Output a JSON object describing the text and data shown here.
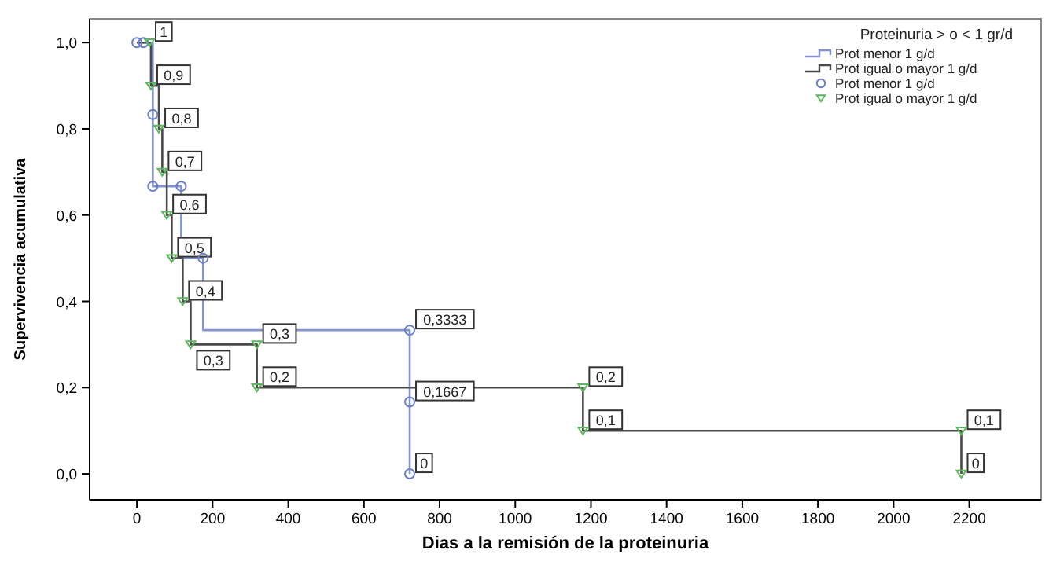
{
  "chart_data": {
    "type": "step",
    "xlabel": "Dias a la remisión de la proteinuria",
    "ylabel": "Supervivencia acumulativa",
    "legend_title": "Proteinuria > o < 1 gr/d",
    "legend": "top right",
    "grid": false,
    "xlim": [
      -125,
      2390
    ],
    "xticks": [
      0,
      200,
      400,
      600,
      800,
      1000,
      1200,
      1400,
      1600,
      1800,
      2000,
      2200
    ],
    "ylim": [
      -0.06,
      1.055
    ],
    "yticks": [
      {
        "value": 0,
        "label": "0,0"
      },
      {
        "value": 0.2,
        "label": "0,2"
      },
      {
        "value": 0.4,
        "label": "0,4"
      },
      {
        "value": 0.6,
        "label": "0,6"
      },
      {
        "value": 0.8,
        "label": "0,8"
      },
      {
        "value": 1,
        "label": "1,0"
      }
    ],
    "series": [
      {
        "name": "Prot menor 1 g/d",
        "color": "#8293d2",
        "x": [
          0,
          17,
          42,
          42,
          117,
          117,
          175,
          175,
          721,
          721,
          721
        ],
        "values": [
          1,
          1,
          0.8333,
          0.6667,
          0.6667,
          0.5,
          0.5,
          0.3333,
          0.3333,
          0.1667,
          0
        ]
      },
      {
        "name": "Prot igual o mayor 1 g/d",
        "color": "#4a4a4a",
        "x": [
          0,
          37,
          37,
          58,
          58,
          67,
          67,
          79,
          79,
          92,
          92,
          121,
          121,
          142,
          142,
          317,
          317,
          1179,
          1179,
          2179,
          2179
        ],
        "values": [
          1,
          1,
          0.9,
          0.9,
          0.8,
          0.8,
          0.7,
          0.7,
          0.6,
          0.6,
          0.5,
          0.5,
          0.4,
          0.4,
          0.3,
          0.3,
          0.2,
          0.2,
          0.1,
          0.1,
          0
        ]
      },
      {
        "name": "Prot menor 1 g/d",
        "type": "scatter",
        "marker": "circle",
        "color": "#6a7fc8",
        "x": [
          0,
          17,
          42,
          42,
          117,
          175,
          721,
          721,
          721
        ],
        "values": [
          1,
          1,
          0.8333,
          0.6667,
          0.6667,
          0.5,
          0.3333,
          0.1667,
          0
        ],
        "value_labels": [
          null,
          null,
          null,
          null,
          null,
          null,
          "0,3333",
          "0,1667",
          "0"
        ]
      },
      {
        "name": "Prot igual o mayor 1 g/d",
        "type": "scatter",
        "marker": "triangle",
        "color": "#5cb85c",
        "x": [
          33,
          37,
          58,
          67,
          79,
          92,
          121,
          142,
          317,
          317,
          1179,
          1179,
          2179,
          2179
        ],
        "values": [
          1,
          0.9,
          0.8,
          0.7,
          0.6,
          0.5,
          0.4,
          0.3,
          0.3,
          0.2,
          0.2,
          0.1,
          0.1,
          0
        ],
        "value_labels": [
          "1",
          "0,9",
          "0,8",
          "0,7",
          "0,6",
          "0,5",
          "0,4",
          "0,3",
          "0,3",
          "0,2",
          "0,2",
          "0,1",
          "0,1",
          "0"
        ]
      }
    ]
  }
}
